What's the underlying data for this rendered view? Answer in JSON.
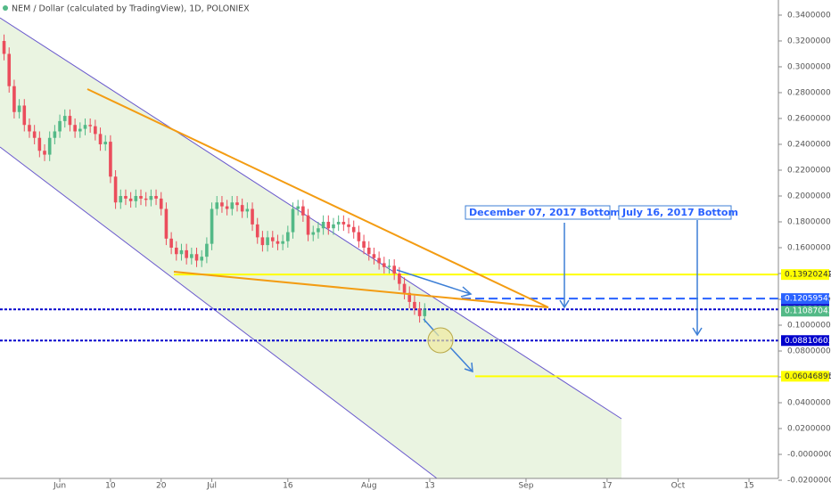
{
  "chart_data": {
    "type": "candlestick",
    "title": "NEM / Dollar (calculated by TradingView), 1D, POLONIEX",
    "x": [
      -11,
      -10,
      -9,
      -8,
      -7,
      -6,
      -5,
      -4,
      -3,
      -2,
      -1,
      0,
      1,
      2,
      3,
      4,
      5,
      6,
      7,
      8,
      9,
      10,
      11,
      12,
      13,
      14,
      15,
      16,
      17,
      18,
      19,
      20,
      21,
      22,
      23,
      24,
      25,
      26,
      27,
      28,
      29,
      30,
      31,
      32,
      33,
      34,
      35,
      36,
      37,
      38,
      39,
      40,
      41,
      42,
      43,
      44,
      45,
      46,
      47,
      48,
      49,
      50,
      51,
      52,
      53,
      54,
      55,
      56,
      57,
      58,
      59,
      60,
      61,
      62,
      63,
      64,
      65,
      66,
      67,
      68,
      69,
      70,
      71,
      72
    ],
    "open": [
      0.32,
      0.31,
      0.285,
      0.265,
      0.27,
      0.255,
      0.25,
      0.245,
      0.235,
      0.232,
      0.245,
      0.25,
      0.258,
      0.262,
      0.255,
      0.25,
      0.252,
      0.255,
      0.254,
      0.248,
      0.24,
      0.242,
      0.215,
      0.195,
      0.2,
      0.198,
      0.196,
      0.2,
      0.198,
      0.197,
      0.2,
      0.198,
      0.19,
      0.167,
      0.16,
      0.155,
      0.158,
      0.152,
      0.155,
      0.15,
      0.153,
      0.163,
      0.19,
      0.195,
      0.192,
      0.19,
      0.195,
      0.193,
      0.188,
      0.19,
      0.178,
      0.168,
      0.162,
      0.168,
      0.165,
      0.163,
      0.165,
      0.172,
      0.19,
      0.192,
      0.185,
      0.17,
      0.172,
      0.175,
      0.18,
      0.175,
      0.178,
      0.18,
      0.178,
      0.176,
      0.172,
      0.165,
      0.16,
      0.155,
      0.152,
      0.148,
      0.145,
      0.146,
      0.14,
      0.132,
      0.125,
      0.118,
      0.113,
      0.107
    ],
    "high": [
      0.325,
      0.315,
      0.29,
      0.275,
      0.275,
      0.26,
      0.255,
      0.25,
      0.24,
      0.25,
      0.255,
      0.263,
      0.267,
      0.267,
      0.26,
      0.257,
      0.26,
      0.26,
      0.259,
      0.253,
      0.247,
      0.247,
      0.22,
      0.205,
      0.205,
      0.203,
      0.205,
      0.205,
      0.203,
      0.205,
      0.205,
      0.203,
      0.195,
      0.172,
      0.165,
      0.163,
      0.163,
      0.16,
      0.16,
      0.158,
      0.168,
      0.195,
      0.2,
      0.2,
      0.197,
      0.2,
      0.2,
      0.198,
      0.195,
      0.195,
      0.183,
      0.173,
      0.173,
      0.173,
      0.17,
      0.17,
      0.177,
      0.195,
      0.197,
      0.197,
      0.19,
      0.177,
      0.18,
      0.185,
      0.185,
      0.183,
      0.185,
      0.185,
      0.183,
      0.181,
      0.177,
      0.17,
      0.165,
      0.16,
      0.157,
      0.153,
      0.151,
      0.151,
      0.145,
      0.137,
      0.13,
      0.123,
      0.118,
      0.117
    ],
    "low": [
      0.305,
      0.28,
      0.26,
      0.26,
      0.25,
      0.245,
      0.24,
      0.23,
      0.227,
      0.227,
      0.24,
      0.245,
      0.253,
      0.25,
      0.245,
      0.245,
      0.247,
      0.249,
      0.243,
      0.235,
      0.235,
      0.21,
      0.19,
      0.19,
      0.193,
      0.191,
      0.191,
      0.193,
      0.192,
      0.192,
      0.193,
      0.185,
      0.162,
      0.155,
      0.15,
      0.15,
      0.147,
      0.147,
      0.145,
      0.145,
      0.148,
      0.158,
      0.185,
      0.187,
      0.185,
      0.185,
      0.188,
      0.183,
      0.183,
      0.173,
      0.163,
      0.157,
      0.157,
      0.16,
      0.158,
      0.158,
      0.16,
      0.167,
      0.185,
      0.18,
      0.165,
      0.165,
      0.167,
      0.17,
      0.17,
      0.17,
      0.173,
      0.173,
      0.171,
      0.167,
      0.16,
      0.155,
      0.15,
      0.147,
      0.143,
      0.14,
      0.14,
      0.135,
      0.127,
      0.12,
      0.113,
      0.108,
      0.102,
      0.102
    ],
    "close": [
      0.31,
      0.285,
      0.265,
      0.27,
      0.255,
      0.25,
      0.245,
      0.235,
      0.232,
      0.245,
      0.25,
      0.258,
      0.262,
      0.255,
      0.25,
      0.252,
      0.255,
      0.254,
      0.248,
      0.24,
      0.242,
      0.215,
      0.195,
      0.2,
      0.198,
      0.196,
      0.2,
      0.198,
      0.197,
      0.2,
      0.198,
      0.19,
      0.167,
      0.16,
      0.155,
      0.158,
      0.152,
      0.155,
      0.15,
      0.153,
      0.163,
      0.19,
      0.195,
      0.192,
      0.19,
      0.195,
      0.193,
      0.188,
      0.19,
      0.178,
      0.168,
      0.162,
      0.168,
      0.165,
      0.163,
      0.165,
      0.172,
      0.19,
      0.192,
      0.185,
      0.17,
      0.172,
      0.175,
      0.18,
      0.175,
      0.178,
      0.18,
      0.178,
      0.176,
      0.172,
      0.165,
      0.16,
      0.155,
      0.152,
      0.148,
      0.145,
      0.146,
      0.14,
      0.132,
      0.125,
      0.118,
      0.113,
      0.107,
      0.112
    ],
    "up_color": "#53b987",
    "down_color": "#eb4d5c",
    "xlim": [
      -11.8,
      141.8
    ],
    "xticks": [
      {
        "value": 0,
        "label": "Jun"
      },
      10,
      20,
      {
        "value": 30,
        "label": "Jul"
      },
      {
        "value": 45,
        "label": "16"
      },
      {
        "value": 61,
        "label": "Aug"
      },
      {
        "value": 73,
        "label": "13"
      },
      {
        "value": 92,
        "label": "Sep"
      },
      {
        "value": 108,
        "label": "17"
      },
      {
        "value": 122,
        "label": "Oct"
      },
      {
        "value": 136,
        "label": "15"
      }
    ],
    "ylim": [
      -0.0186,
      0.3517
    ],
    "yticks": [
      {
        "value": 0.34,
        "label": "0.34000000"
      },
      {
        "value": 0.32,
        "label": "0.32000000"
      },
      {
        "value": 0.3,
        "label": "0.30000000"
      },
      {
        "value": 0.28,
        "label": "0.28000000"
      },
      {
        "value": 0.26,
        "label": "0.26000000"
      },
      {
        "value": 0.24,
        "label": "0.24000000"
      },
      {
        "value": 0.22,
        "label": "0.22000000"
      },
      {
        "value": 0.2,
        "label": "0.20000000"
      },
      {
        "value": 0.18,
        "label": "0.18000000"
      },
      {
        "value": 0.16,
        "label": "0.16000000"
      },
      {
        "value": 0.14,
        "label": "0.14000000"
      },
      {
        "value": 0.12,
        "label": "0.12000000"
      },
      {
        "value": 0.1,
        "label": "0.10000000"
      },
      {
        "value": 0.08,
        "label": "0.08000000"
      },
      {
        "value": 0.06,
        "label": "0.06000000"
      },
      {
        "value": 0.04,
        "label": "0.04000000"
      },
      {
        "value": 0.02,
        "label": "0.02000000"
      },
      {
        "value": 0,
        "label": "-0.00000000"
      },
      {
        "value": -0.02,
        "label": "-0.02000000"
      }
    ],
    "levels": [
      {
        "value": 0.13920242,
        "color": "#ffff00",
        "style": "solid"
      },
      {
        "value": 0.12059545,
        "color": "#2962ff",
        "style": "dashed"
      },
      {
        "value": 0.11228142,
        "color": "#0000cc",
        "style": "dotted"
      },
      {
        "value": 0.08810603,
        "color": "#0000cc",
        "style": "dotted"
      },
      {
        "value": 0.06046895,
        "color": "#ffff00",
        "style": "solid"
      }
    ],
    "last_price": {
      "value": 0.11087043,
      "color": "#53b987"
    },
    "annotations": [
      "December 07, 2017 Bottom",
      "July 16, 2017 Bottom"
    ]
  }
}
